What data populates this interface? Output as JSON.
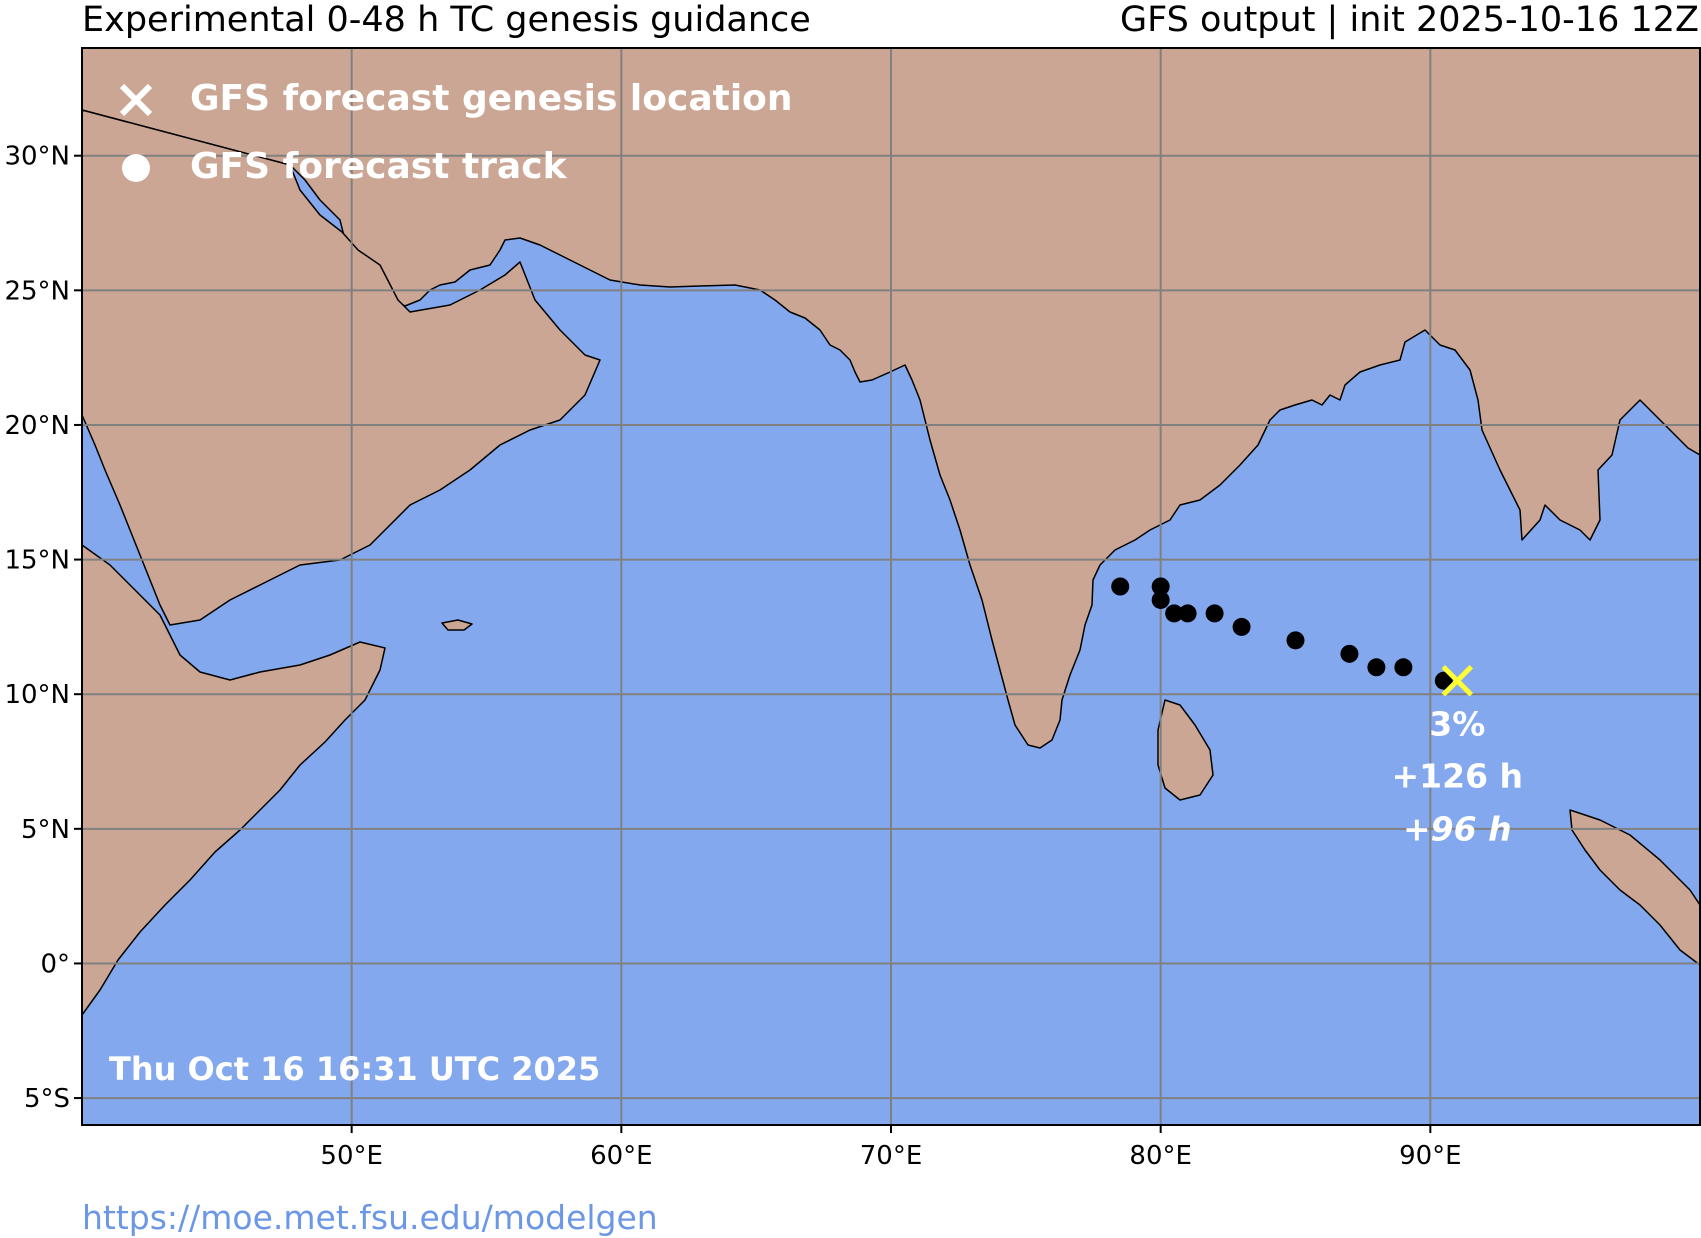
{
  "header": {
    "title_left": "Experimental 0-48 h TC genesis guidance",
    "title_right": "GFS output | init 2025-10-16 12Z"
  },
  "legend": {
    "genesis_label": "GFS forecast genesis location",
    "track_label": "GFS forecast track"
  },
  "timestamp": "Thu Oct 16 16:31 UTC 2025",
  "footer_url": "https://moe.met.fsu.edu/modelgen",
  "axes": {
    "lon_range": [
      40,
      100
    ],
    "lat_range": [
      -6,
      34
    ],
    "lon_ticks": [
      {
        "value": 50,
        "label": "50°E"
      },
      {
        "value": 60,
        "label": "60°E"
      },
      {
        "value": 70,
        "label": "70°E"
      },
      {
        "value": 80,
        "label": "80°E"
      },
      {
        "value": 90,
        "label": "90°E"
      }
    ],
    "lat_ticks": [
      {
        "value": 30,
        "label": "30°N"
      },
      {
        "value": 25,
        "label": "25°N"
      },
      {
        "value": 20,
        "label": "20°N"
      },
      {
        "value": 15,
        "label": "15°N"
      },
      {
        "value": 10,
        "label": "10°N"
      },
      {
        "value": 5,
        "label": "5°N"
      },
      {
        "value": 0,
        "label": "0°"
      },
      {
        "value": -5,
        "label": "5°S"
      }
    ]
  },
  "colors": {
    "ocean": "#84a8ee",
    "land": "#cba694",
    "track": "#000000",
    "genesis_marker": "#ffff33",
    "legend_text": "#ffffff"
  },
  "genesis": {
    "lon": 91.0,
    "lat": 10.5,
    "probability": "3%",
    "lead_time": "+126 h",
    "lead_time_2": "+96 h"
  },
  "track_points": [
    {
      "lon": 90.5,
      "lat": 10.5
    },
    {
      "lon": 89.0,
      "lat": 11.0
    },
    {
      "lon": 88.0,
      "lat": 11.0
    },
    {
      "lon": 87.0,
      "lat": 11.5
    },
    {
      "lon": 85.0,
      "lat": 12.0
    },
    {
      "lon": 83.0,
      "lat": 12.5
    },
    {
      "lon": 82.0,
      "lat": 13.0
    },
    {
      "lon": 81.0,
      "lat": 13.0
    },
    {
      "lon": 80.5,
      "lat": 13.0
    },
    {
      "lon": 80.0,
      "lat": 13.5
    },
    {
      "lon": 80.0,
      "lat": 14.0
    },
    {
      "lon": 78.5,
      "lat": 14.0
    }
  ]
}
